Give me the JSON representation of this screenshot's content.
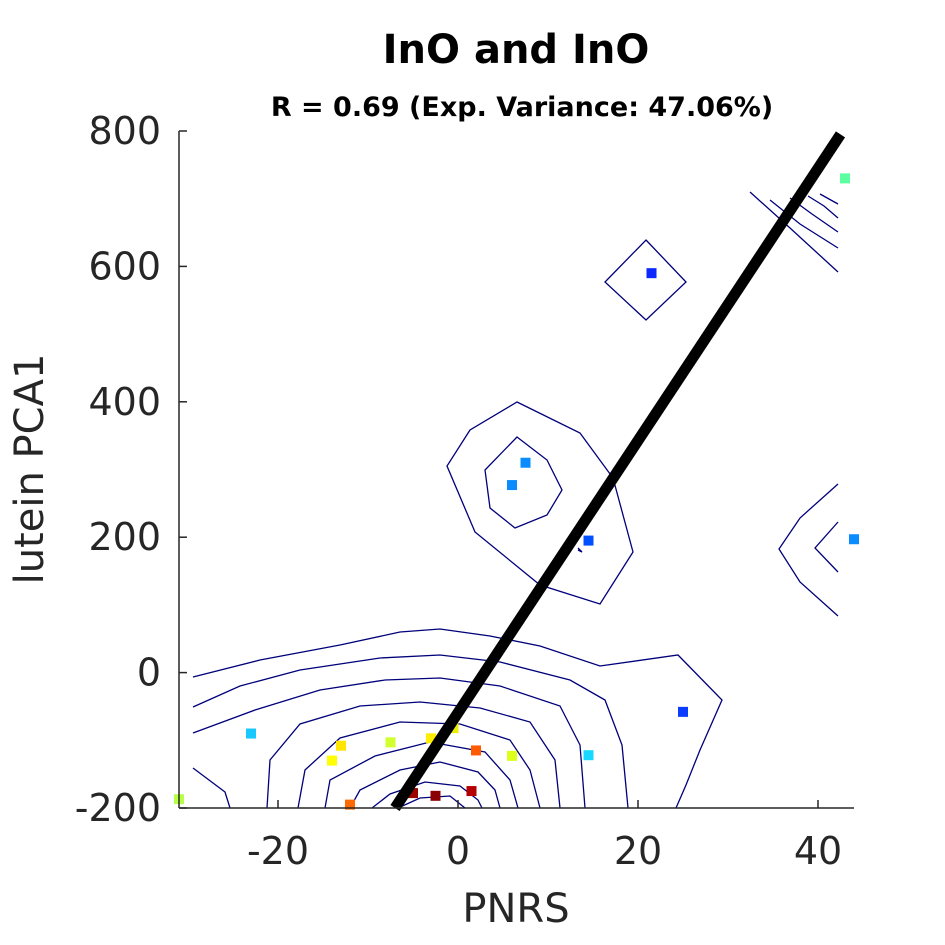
{
  "chart_data": {
    "type": "scatter",
    "title": "InO and InO",
    "subtitle": "R = 0.69 (Exp. Variance: 47.06%)",
    "xlabel": "PNRS",
    "ylabel": "lutein PCA1",
    "xlim": [
      -31,
      44
    ],
    "ylim": [
      -200,
      800
    ],
    "xticks": [
      -20,
      0,
      20,
      40
    ],
    "yticks": [
      -200,
      0,
      200,
      400,
      600,
      800
    ],
    "xtick_labels": [
      "-20",
      "0",
      "20",
      "40"
    ],
    "ytick_labels": [
      "-200",
      "0",
      "200",
      "400",
      "600",
      "800"
    ],
    "grid": false,
    "legend": "none",
    "regression_line": {
      "x": [
        -7,
        42.5
      ],
      "y": [
        -200,
        795
      ],
      "color": "#000000"
    },
    "points": [
      {
        "x": -31,
        "y": -187,
        "color": "#b8ff47"
      },
      {
        "x": -23,
        "y": -90,
        "color": "#19c8ff"
      },
      {
        "x": -14,
        "y": -130,
        "color": "#ffff00"
      },
      {
        "x": -13,
        "y": -108,
        "color": "#ffe500"
      },
      {
        "x": -12,
        "y": -195,
        "color": "#ff6a00"
      },
      {
        "x": -7.5,
        "y": -103,
        "color": "#d2ff2e"
      },
      {
        "x": -5,
        "y": -178,
        "color": "#9b0000"
      },
      {
        "x": -3,
        "y": -97,
        "color": "#ffee00"
      },
      {
        "x": -2.5,
        "y": -182,
        "color": "#8b0000"
      },
      {
        "x": -0.5,
        "y": -82,
        "color": "#e8f000"
      },
      {
        "x": 1.5,
        "y": -175,
        "color": "#b40000"
      },
      {
        "x": 2,
        "y": -115,
        "color": "#ff5a00"
      },
      {
        "x": 6,
        "y": -123,
        "color": "#ddff1a"
      },
      {
        "x": 6,
        "y": 277,
        "color": "#0a8cff"
      },
      {
        "x": 7.5,
        "y": 310,
        "color": "#0a8cff"
      },
      {
        "x": 14.5,
        "y": 195,
        "color": "#0050ff"
      },
      {
        "x": 14.5,
        "y": -122,
        "color": "#19d8ff"
      },
      {
        "x": 21.5,
        "y": 590,
        "color": "#0a28ff"
      },
      {
        "x": 25,
        "y": -58,
        "color": "#0a3cff"
      },
      {
        "x": 43,
        "y": 730,
        "color": "#5cff9f"
      },
      {
        "x": 44,
        "y": 197,
        "color": "#0a8cff"
      }
    ]
  }
}
